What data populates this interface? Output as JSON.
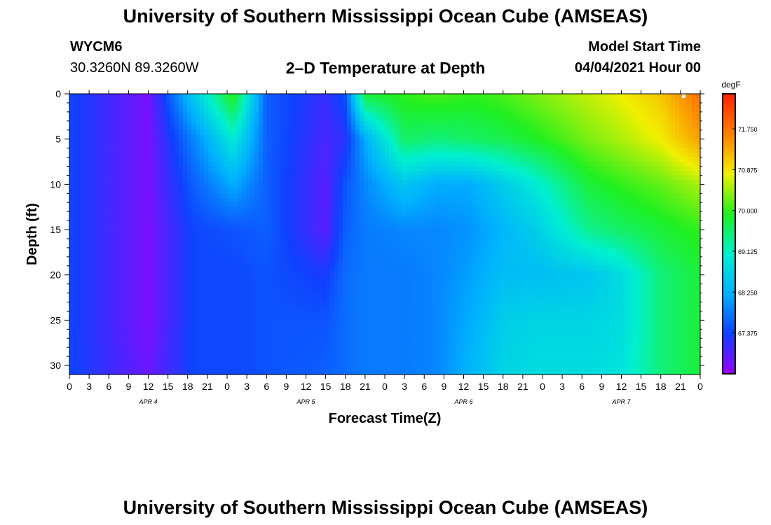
{
  "header": {
    "title_top": "University of Southern Mississippi Ocean Cube (AMSEAS)",
    "station": "WYCM6",
    "coords": "30.3260N  89.3260W",
    "plot_title": "2–D Temperature at Depth",
    "model_start_label": "Model Start Time",
    "model_start_value": "04/04/2021 Hour 00",
    "title_bottom": "University of Southern Mississippi Ocean Cube (AMSEAS)"
  },
  "chart_data": {
    "type": "heatmap",
    "title": "2–D Temperature at Depth",
    "xlabel": "Forecast Time(Z)",
    "ylabel": "Depth (ft)",
    "colorbar_label": "degF",
    "x_range_hours": [
      0,
      96
    ],
    "ylim": [
      31,
      0
    ],
    "x_ticks": [
      "0",
      "3",
      "6",
      "9",
      "12",
      "15",
      "18",
      "21",
      "0",
      "3",
      "6",
      "9",
      "12",
      "15",
      "18",
      "21",
      "0",
      "3",
      "6",
      "9",
      "12",
      "15",
      "18",
      "21",
      "0",
      "3",
      "6",
      "9",
      "12",
      "15",
      "18",
      "21",
      "0"
    ],
    "y_ticks": [
      "0",
      "5",
      "10",
      "15",
      "20",
      "25",
      "30"
    ],
    "y_tick_values": [
      0,
      5,
      10,
      15,
      20,
      25,
      30
    ],
    "date_labels": [
      "APR  4",
      "APR  5",
      "APR  6",
      "APR  7"
    ],
    "date_label_hours": [
      12,
      36,
      60,
      84
    ],
    "colorbar_ticks": [
      "67.375",
      "68.250",
      "69.125",
      "70.000",
      "70.875",
      "71.750"
    ],
    "colorbar_tick_values": [
      67.375,
      68.25,
      69.125,
      70.0,
      70.875,
      71.75
    ],
    "color_range": [
      66.5,
      72.5
    ],
    "colors": [
      "#9900ff",
      "#1040ff",
      "#00b0ff",
      "#00f0d0",
      "#20f020",
      "#f0f000",
      "#ff8000",
      "#ff2000"
    ],
    "depths": [
      0,
      5,
      10,
      15,
      20,
      25,
      31
    ],
    "hours": [
      0,
      12,
      19,
      25,
      30,
      39,
      42,
      45,
      51,
      56,
      61,
      66,
      71,
      79,
      84,
      90,
      96
    ],
    "temperature": [
      [
        67.4,
        66.7,
        68.6,
        70.0,
        67.6,
        67.1,
        67.5,
        69.8,
        70.0,
        70.1,
        70.0,
        70.1,
        70.3,
        70.6,
        70.8,
        71.1,
        71.8
      ],
      [
        67.4,
        66.7,
        67.9,
        69.0,
        67.6,
        67.0,
        67.2,
        68.2,
        69.6,
        69.5,
        69.6,
        69.7,
        69.9,
        70.3,
        70.5,
        70.8,
        71.4
      ],
      [
        67.4,
        66.7,
        67.6,
        68.2,
        67.6,
        66.9,
        67.5,
        67.9,
        68.5,
        68.2,
        68.2,
        68.6,
        69.0,
        69.8,
        70.0,
        70.2,
        70.5
      ],
      [
        67.4,
        66.7,
        67.4,
        67.5,
        67.6,
        66.9,
        67.6,
        67.8,
        67.9,
        67.9,
        68.0,
        68.3,
        68.6,
        69.4,
        69.6,
        69.8,
        70.0
      ],
      [
        67.4,
        66.7,
        67.4,
        67.4,
        67.5,
        67.3,
        67.7,
        67.8,
        67.8,
        67.9,
        68.1,
        68.4,
        68.4,
        68.5,
        68.8,
        69.5,
        69.8
      ],
      [
        67.4,
        66.7,
        67.4,
        67.4,
        67.5,
        67.5,
        67.7,
        67.8,
        67.8,
        67.9,
        68.2,
        68.6,
        68.7,
        68.7,
        68.8,
        69.5,
        69.8
      ],
      [
        67.4,
        66.8,
        67.4,
        67.4,
        67.5,
        67.6,
        67.7,
        67.8,
        67.8,
        67.9,
        68.3,
        68.7,
        68.8,
        68.8,
        68.9,
        69.5,
        69.8
      ]
    ]
  }
}
